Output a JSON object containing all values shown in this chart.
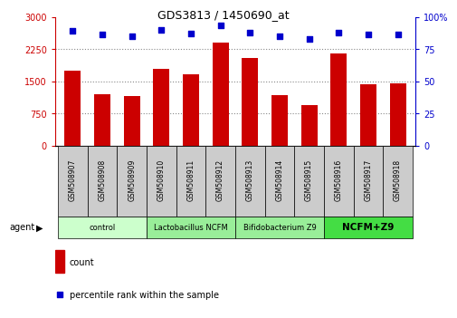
{
  "title": "GDS3813 / 1450690_at",
  "samples": [
    "GSM508907",
    "GSM508908",
    "GSM508909",
    "GSM508910",
    "GSM508911",
    "GSM508912",
    "GSM508913",
    "GSM508914",
    "GSM508915",
    "GSM508916",
    "GSM508917",
    "GSM508918"
  ],
  "counts": [
    1750,
    1200,
    1150,
    1780,
    1650,
    2400,
    2050,
    1180,
    950,
    2150,
    1430,
    1440
  ],
  "percentiles": [
    89,
    86,
    85,
    90,
    87,
    93,
    88,
    85,
    83,
    88,
    86,
    86
  ],
  "bar_color": "#cc0000",
  "dot_color": "#0000cc",
  "ylim_left": [
    0,
    3000
  ],
  "ylim_right": [
    0,
    100
  ],
  "yticks_left": [
    0,
    750,
    1500,
    2250,
    3000
  ],
  "ytick_labels_left": [
    "0",
    "750",
    "1500",
    "2250",
    "3000"
  ],
  "yticks_right": [
    0,
    25,
    50,
    75,
    100
  ],
  "ytick_labels_right": [
    "0",
    "25",
    "50",
    "75",
    "100%"
  ],
  "groups": [
    {
      "label": "control",
      "start": 0,
      "end": 3,
      "color": "#ccffcc"
    },
    {
      "label": "Lactobacillus NCFM",
      "start": 3,
      "end": 6,
      "color": "#99ee99"
    },
    {
      "label": "Bifidobacterium Z9",
      "start": 6,
      "end": 9,
      "color": "#99ee99"
    },
    {
      "label": "NCFM+Z9",
      "start": 9,
      "end": 12,
      "color": "#44dd44"
    }
  ],
  "agent_label": "agent",
  "legend_count_label": "count",
  "legend_pct_label": "percentile rank within the sample",
  "bg_color": "#ffffff",
  "plot_bg_color": "#ffffff",
  "tick_label_area_color": "#cccccc",
  "grid_color": "#888888"
}
